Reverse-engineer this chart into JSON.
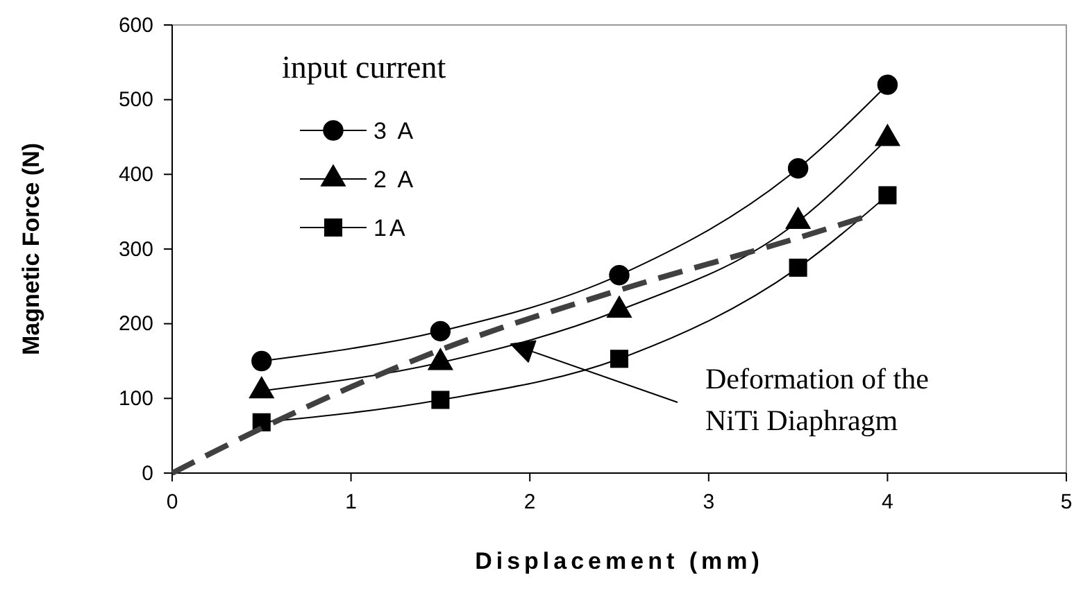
{
  "chart_data": {
    "type": "line",
    "xlabel": "Displacement (mm)",
    "ylabel": "Magnetic Force (N)",
    "legend_title": "input current",
    "legend": "top left",
    "x": [
      0.5,
      1.5,
      2.5,
      3.5,
      4
    ],
    "xlim": [
      0,
      5
    ],
    "xticks": [
      0,
      1,
      2,
      3,
      4,
      5
    ],
    "ylim": [
      0,
      600
    ],
    "yticks": [
      0,
      100,
      200,
      300,
      400,
      500,
      600
    ],
    "grid": false,
    "series": [
      {
        "name": "3 A",
        "color": "#000000",
        "marker": "circle",
        "values": [
          150,
          190,
          265,
          408,
          520
        ]
      },
      {
        "name": "2 A",
        "color": "#000000",
        "marker": "triangle",
        "values": [
          110,
          148,
          218,
          337,
          448
        ]
      },
      {
        "name": "1A",
        "color": "#000000",
        "marker": "square",
        "values": [
          68,
          98,
          153,
          275,
          372
        ]
      },
      {
        "type": "line",
        "color": "#404040",
        "marker": "none",
        "line_style": "dashed",
        "x": [
          0,
          0.5,
          1.5,
          2.5,
          3.5,
          3.9
        ],
        "values": [
          0,
          60,
          165,
          245,
          315,
          345
        ]
      }
    ],
    "annotations": [
      "Deformation of the NiTi Diaphragm"
    ]
  }
}
